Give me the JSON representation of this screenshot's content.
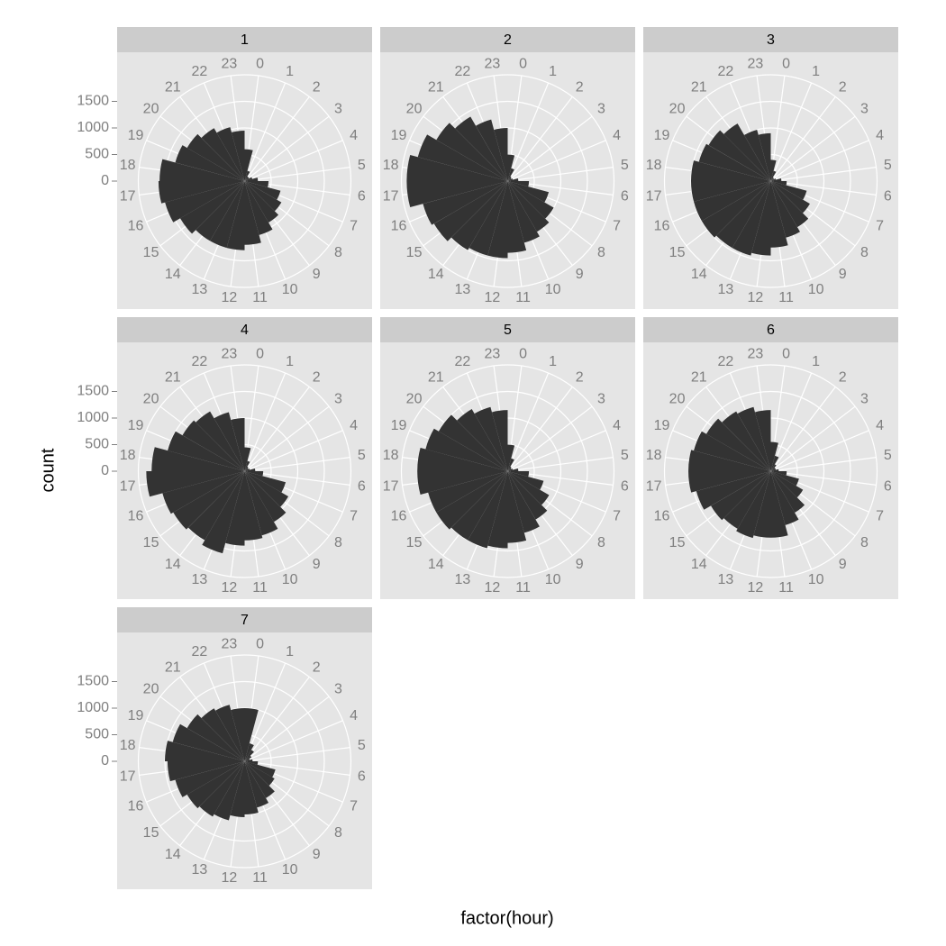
{
  "chart_data": {
    "type": "polar-bar",
    "x_label": "factor(hour)",
    "y_label": "count",
    "color": "#333333",
    "categories": [
      "0",
      "1",
      "2",
      "3",
      "4",
      "5",
      "6",
      "7",
      "8",
      "9",
      "10",
      "11",
      "12",
      "13",
      "14",
      "15",
      "16",
      "17",
      "18",
      "19",
      "20",
      "21",
      "22",
      "23"
    ],
    "ylim": [
      0,
      2000
    ],
    "yticks": [
      0,
      500,
      1000,
      1500
    ],
    "grid": true,
    "facets": [
      {
        "title": "1",
        "values": [
          600,
          200,
          100,
          100,
          150,
          250,
          450,
          700,
          800,
          900,
          1050,
          1200,
          1300,
          1300,
          1300,
          1400,
          1550,
          1620,
          1600,
          1350,
          1250,
          1150,
          1050,
          950
        ]
      },
      {
        "title": "2",
        "values": [
          500,
          250,
          100,
          80,
          100,
          200,
          400,
          800,
          1000,
          1100,
          1200,
          1350,
          1450,
          1450,
          1500,
          1600,
          1650,
          1900,
          1900,
          1750,
          1550,
          1400,
          1200,
          1000
        ]
      },
      {
        "title": "3",
        "values": [
          400,
          200,
          80,
          70,
          100,
          200,
          300,
          700,
          850,
          1000,
          1100,
          1250,
          1400,
          1450,
          1450,
          1500,
          1500,
          1500,
          1500,
          1400,
          1350,
          1250,
          1000,
          900
        ]
      },
      {
        "title": "4",
        "values": [
          450,
          200,
          100,
          80,
          100,
          200,
          350,
          800,
          950,
          1100,
          1250,
          1300,
          1400,
          1600,
          1500,
          1550,
          1600,
          1850,
          1750,
          1500,
          1350,
          1300,
          1150,
          1000
        ]
      },
      {
        "title": "5",
        "values": [
          500,
          250,
          100,
          80,
          100,
          200,
          400,
          700,
          900,
          1050,
          1200,
          1350,
          1450,
          1500,
          1500,
          1550,
          1550,
          1700,
          1700,
          1600,
          1500,
          1350,
          1250,
          1150
        ]
      },
      {
        "title": "6",
        "values": [
          550,
          300,
          150,
          100,
          100,
          150,
          300,
          550,
          700,
          900,
          1050,
          1250,
          1250,
          1300,
          1250,
          1300,
          1450,
          1550,
          1550,
          1500,
          1400,
          1300,
          1250,
          1150
        ]
      },
      {
        "title": "7",
        "values": [
          1000,
          350,
          250,
          150,
          100,
          150,
          250,
          600,
          650,
          800,
          900,
          1000,
          1050,
          1150,
          1200,
          1250,
          1350,
          1450,
          1500,
          1400,
          1250,
          1150,
          1100,
          1000
        ]
      }
    ]
  }
}
